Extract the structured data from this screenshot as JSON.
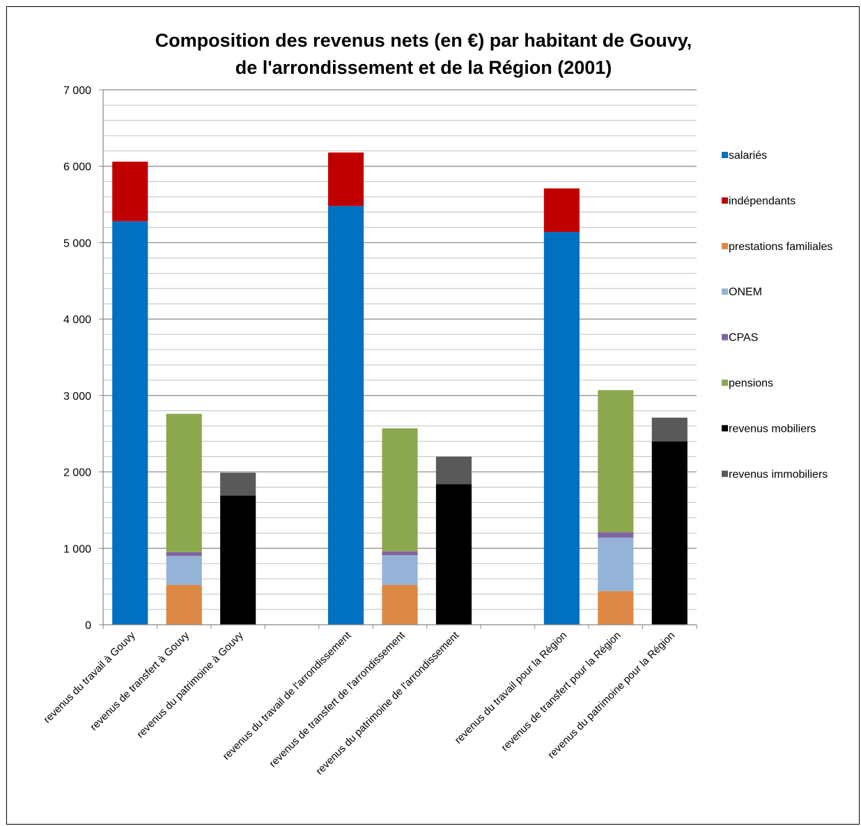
{
  "chart_data": {
    "type": "bar",
    "stacked": true,
    "title_lines": [
      "Composition des revenus nets (en €) par habitant de Gouvy,",
      "de l'arrondissement et de la Région (2001)"
    ],
    "xlabel": "",
    "ylabel": "",
    "ylim": [
      0,
      7000
    ],
    "yticks": [
      0,
      1000,
      2000,
      3000,
      4000,
      5000,
      6000,
      7000
    ],
    "ytick_labels": [
      "0",
      "1 000",
      "2 000",
      "3 000",
      "4 000",
      "5 000",
      "6 000",
      "7 000"
    ],
    "grid": true,
    "legend_position": "right",
    "categories": [
      "revenus du travail à Gouvy",
      "revenus de transfert à Gouvy",
      "revenus du patrimoine à Gouvy",
      "",
      "revenus du travail de l'arrondissement",
      "revenus de transfert de l'arrondissement",
      "revenus du patrimoine de l'arrondissement",
      "",
      "revenus du travail pour la Région",
      "revenus de transfert pour la Région",
      "revenus du patrimoine pour la Région"
    ],
    "series": [
      {
        "name": "salariés",
        "color": "#0070C0",
        "values": [
          5280,
          0,
          0,
          0,
          5480,
          0,
          0,
          0,
          5140,
          0,
          0
        ]
      },
      {
        "name": "indépendants",
        "color": "#C00000",
        "values": [
          780,
          0,
          0,
          0,
          700,
          0,
          0,
          0,
          570,
          0,
          0
        ]
      },
      {
        "name": "prestations familiales",
        "color": "#DD8844",
        "values": [
          0,
          520,
          0,
          0,
          0,
          520,
          0,
          0,
          0,
          440,
          0
        ]
      },
      {
        "name": "ONEM",
        "color": "#95B3D7",
        "values": [
          0,
          380,
          0,
          0,
          0,
          390,
          0,
          0,
          0,
          700,
          0
        ]
      },
      {
        "name": "CPAS",
        "color": "#8064A2",
        "values": [
          0,
          50,
          0,
          0,
          0,
          50,
          0,
          0,
          0,
          70,
          0
        ]
      },
      {
        "name": "pensions",
        "color": "#8BA84E",
        "values": [
          0,
          1810,
          0,
          0,
          0,
          1610,
          0,
          0,
          0,
          1860,
          0
        ]
      },
      {
        "name": "revenus mobiliers",
        "color": "#000000",
        "values": [
          0,
          0,
          1690,
          0,
          0,
          0,
          1840,
          0,
          0,
          0,
          2400
        ]
      },
      {
        "name": "revenus immobiliers",
        "color": "#595959",
        "values": [
          0,
          0,
          300,
          0,
          0,
          0,
          360,
          0,
          0,
          0,
          310
        ]
      }
    ]
  }
}
